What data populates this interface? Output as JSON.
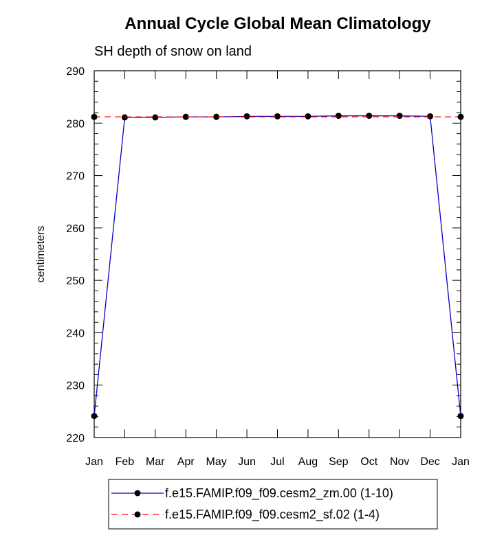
{
  "chart_data": {
    "type": "line",
    "title": "Annual Cycle Global Mean Climatology",
    "subtitle": "SH depth of snow on land",
    "xlabel": "",
    "ylabel": "centimeters",
    "categories": [
      "Jan",
      "Feb",
      "Mar",
      "Apr",
      "May",
      "Jun",
      "Jul",
      "Aug",
      "Sep",
      "Oct",
      "Nov",
      "Dec",
      "Jan"
    ],
    "ylim": [
      220,
      290
    ],
    "yticks": [
      220,
      230,
      240,
      250,
      260,
      270,
      280,
      290
    ],
    "grid": false,
    "legend_position": "bottom",
    "series": [
      {
        "name": "f.e15.FAMIP.f09_f09.cesm2_zm.00 (1-10)",
        "color": "#0000cc",
        "dash": "solid",
        "values": [
          224.1,
          281.1,
          281.1,
          281.2,
          281.2,
          281.3,
          281.3,
          281.3,
          281.4,
          281.4,
          281.4,
          281.3,
          224.1
        ]
      },
      {
        "name": "f.e15.FAMIP.f09_f09.cesm2_sf.02 (1-4)",
        "color": "#ff0000",
        "dash": "dashed",
        "values": [
          281.2,
          null,
          null,
          null,
          null,
          null,
          null,
          null,
          null,
          null,
          null,
          null,
          281.2
        ]
      }
    ]
  }
}
